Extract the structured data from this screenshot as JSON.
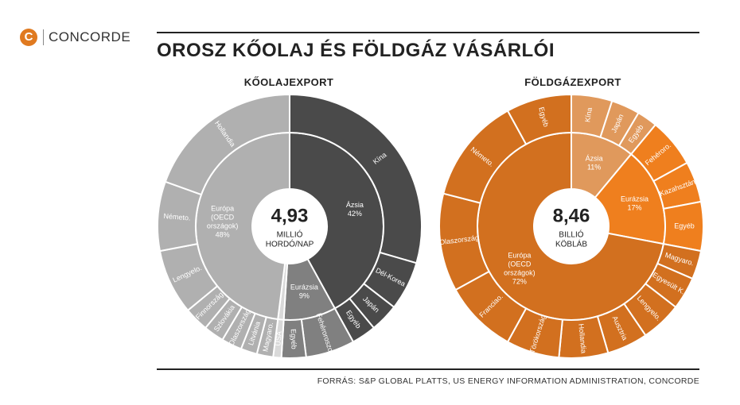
{
  "brand": {
    "logo_letter": "C",
    "name": "CONCORDE",
    "accent": "#e07a20"
  },
  "title": "OROSZ KŐOLAJ ÉS FÖLDGÁZ VÁSÁRLÓI",
  "source": "FORRÁS: S&P GLOBAL PLATTS, US ENERGY INFORMATION ADMINISTRATION, CONCORDE",
  "chart_data": [
    {
      "type": "sunburst",
      "title": "KŐOLAJEXPORT",
      "center": {
        "value": "4,93",
        "unit_line1": "MILLIÓ",
        "unit_line2": "HORDÓ/NAP"
      },
      "inner": [
        {
          "label": [
            "Ázsia",
            "42%"
          ],
          "value": 42,
          "color": "#4a4a4a"
        },
        {
          "label": [
            "Eurázsia",
            "9%"
          ],
          "value": 9,
          "color": "#808080"
        },
        {
          "label": [],
          "value": 1,
          "color": "#d9d9d9"
        },
        {
          "label": [
            "Európa",
            "(OECD",
            "országok)",
            "48%"
          ],
          "value": 48,
          "color": "#b0b0b0"
        }
      ],
      "outer": [
        {
          "label": "Kína",
          "value": 29.5,
          "color": "#4a4a4a"
        },
        {
          "label": "Dél-Korea",
          "value": 6,
          "color": "#4a4a4a"
        },
        {
          "label": "Japán",
          "value": 3.5,
          "color": "#4a4a4a"
        },
        {
          "label": "Egyéb",
          "value": 3,
          "color": "#4a4a4a"
        },
        {
          "label": "Fehéroroszo.",
          "value": 6,
          "color": "#808080"
        },
        {
          "label": "Egyéb",
          "value": 3,
          "color": "#808080"
        },
        {
          "label": "USA",
          "value": 1,
          "color": "#d9d9d9"
        },
        {
          "label": "Magyaro.",
          "value": 2,
          "color": "#b0b0b0"
        },
        {
          "label": "Litvánia",
          "value": 2,
          "color": "#b0b0b0"
        },
        {
          "label": "Olaszország",
          "value": 2.5,
          "color": "#b0b0b0"
        },
        {
          "label": "Szlovákia",
          "value": 2.5,
          "color": "#b0b0b0"
        },
        {
          "label": "Finnország",
          "value": 3,
          "color": "#b0b0b0"
        },
        {
          "label": "Lengyelo.",
          "value": 8,
          "color": "#b0b0b0"
        },
        {
          "label": "Németo.",
          "value": 8.5,
          "color": "#b0b0b0"
        },
        {
          "label": "Hollandia",
          "value": 19.5,
          "color": "#b0b0b0"
        }
      ]
    },
    {
      "type": "sunburst",
      "title": "FÖLDGÁZEXPORT",
      "center": {
        "value": "8,46",
        "unit_line1": "BILLIÓ",
        "unit_line2": "KÖBLÁB"
      },
      "inner": [
        {
          "label": [
            "Ázsia",
            "11%"
          ],
          "value": 11,
          "color": "#e0995c"
        },
        {
          "label": [
            "Eurázsia",
            "17%"
          ],
          "value": 17,
          "color": "#ef7f1e"
        },
        {
          "label": [
            "Európa",
            "(OECD",
            "országok)",
            "72%"
          ],
          "value": 72,
          "color": "#d2701f"
        }
      ],
      "outer": [
        {
          "label": "Kína",
          "value": 5,
          "color": "#e0995c"
        },
        {
          "label": "Japán",
          "value": 3.5,
          "color": "#e0995c"
        },
        {
          "label": "Egyéb",
          "value": 2.5,
          "color": "#e0995c"
        },
        {
          "label": "Fehéroro.",
          "value": 6,
          "color": "#ef7f1e"
        },
        {
          "label": "Kazahsztán",
          "value": 5,
          "color": "#ef7f1e"
        },
        {
          "label": "Egyéb",
          "value": 6,
          "color": "#ef7f1e"
        },
        {
          "label": "Magyaro.",
          "value": 3.5,
          "color": "#d2701f"
        },
        {
          "label": "Egyesült K.",
          "value": 4,
          "color": "#d2701f"
        },
        {
          "label": "Lengyelo.",
          "value": 5,
          "color": "#d2701f"
        },
        {
          "label": "Ausztria",
          "value": 5,
          "color": "#d2701f"
        },
        {
          "label": "Hollandia",
          "value": 6,
          "color": "#d2701f"
        },
        {
          "label": "Törökország",
          "value": 6.5,
          "color": "#d2701f"
        },
        {
          "label": "Franciao.",
          "value": 9,
          "color": "#d2701f"
        },
        {
          "label": "Olaszország",
          "value": 12,
          "color": "#d2701f"
        },
        {
          "label": "Németo.",
          "value": 13,
          "color": "#d2701f"
        },
        {
          "label": "Egyéb",
          "value": 8,
          "color": "#d2701f"
        }
      ]
    }
  ]
}
